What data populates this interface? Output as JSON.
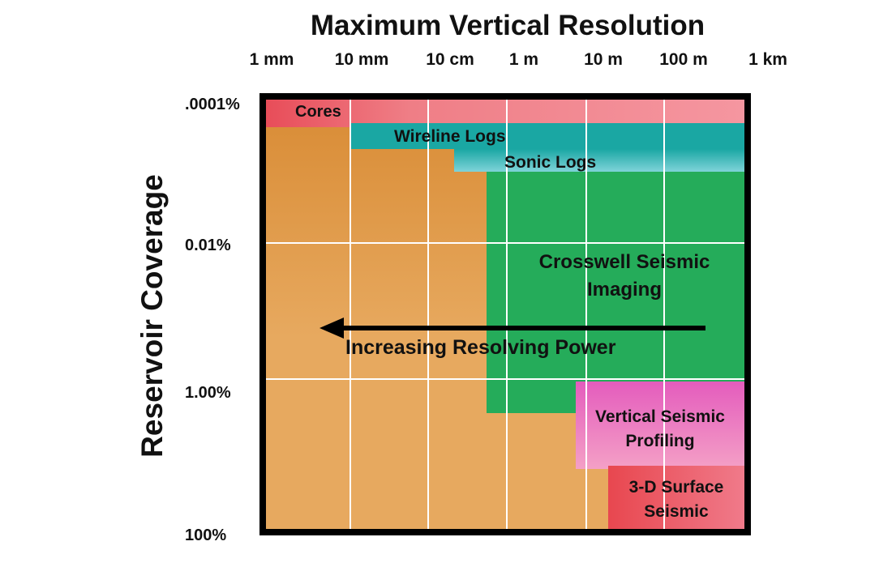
{
  "title": "Maximum Vertical Resolution",
  "y_axis_label": "Reservoir Coverage",
  "x_ticks": [
    "1 mm",
    "10 mm",
    "10 cm",
    "1 m",
    "10 m",
    "100 m",
    "1 km"
  ],
  "y_ticks": [
    ".0001%",
    "0.01%",
    "1.00%",
    "100%"
  ],
  "colors": {
    "background_tan": "#e7a95f",
    "background_orange": "#d88a33",
    "cores": "#ee7a84",
    "wireline": "#1aa7a3",
    "sonic": "#2cb3b5",
    "crosswell": "#25ac5a",
    "vsp": "#dd66bb",
    "surface": "#ea5560",
    "frame": "#000000",
    "grid": "#ffffff"
  },
  "regions": {
    "cores": {
      "label": "Cores"
    },
    "wireline_logs": {
      "label": "Wireline Logs"
    },
    "sonic_logs": {
      "label": "Sonic Logs"
    },
    "crosswell": {
      "label_line1": "Crosswell Seismic",
      "label_line2": "Imaging"
    },
    "vsp": {
      "label_line1": "Vertical Seismic",
      "label_line2": "Profiling"
    },
    "surface": {
      "label_line1": "3-D Surface",
      "label_line2": "Seismic"
    }
  },
  "arrow": {
    "label": "Increasing Resolving Power",
    "direction": "left"
  }
}
